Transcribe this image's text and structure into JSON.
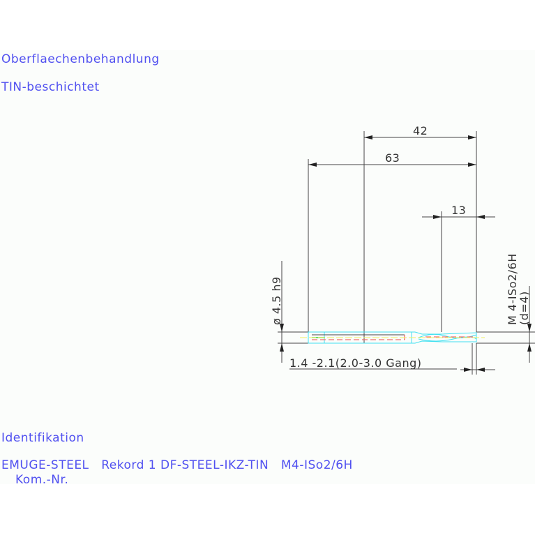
{
  "labels": {
    "surface_heading": "Oberflaechenbehandlung",
    "surface_value": "TIN-beschichtet",
    "id_heading": "Identifikation",
    "id_value": "EMUGE-STEEL   Rekord 1 DF-STEEL-IKZ-TIN   M4-ISo2/6H",
    "kom_nr": "Kom.-Nr."
  },
  "dimensions": {
    "dim_42": "42",
    "dim_63": "63",
    "dim_13": "13",
    "shank_diameter": "ø 4.5 h9",
    "thread": "M 4-ISo2/6H",
    "thread_d": "(d=4)",
    "chamfer": "1.4 -2.1(2.0-3.0 Gang)"
  },
  "colors": {
    "text": "#5050f0",
    "outline": "#40e0f0",
    "center": "#f0f060",
    "hidden": "#f04040"
  }
}
